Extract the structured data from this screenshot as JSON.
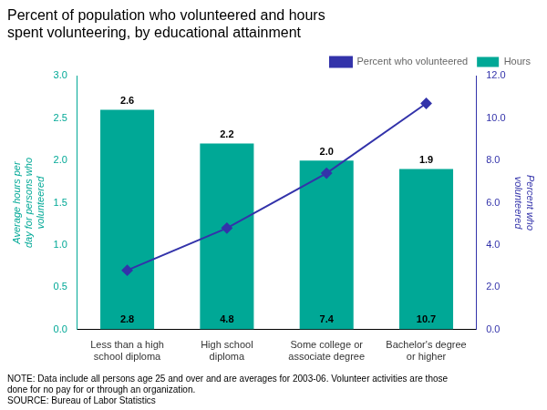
{
  "chart_data": {
    "type": "bar",
    "title": "Percent of population who volunteered and hours\nspent volunteering, by educational attainment",
    "categories": [
      "Less than a high\nschool diploma",
      "High school\ndiploma",
      "Some college or\nassociate degree",
      "Bachelor's degree\nor higher"
    ],
    "series": [
      {
        "name": "Hours",
        "color": "#00A896",
        "values": [
          2.6,
          2.2,
          2.0,
          1.9
        ],
        "value_labels": [
          "2.6",
          "2.2",
          "2.0",
          "1.9"
        ]
      },
      {
        "name": "Percent who volunteered",
        "type": "line",
        "axis": "y2",
        "color": "#3333AA",
        "marker": "diamond",
        "values": [
          2.8,
          4.8,
          7.4,
          10.7
        ]
      }
    ],
    "ylabel": "Average hours per\nday for persons who\nvolunteered",
    "y2label": "Percent who\nvolunteered",
    "ylim": [
      0,
      3.0
    ],
    "yticks": [
      {
        "value": 0,
        "label": "0.0"
      },
      0.5,
      {
        "value": 1,
        "label": "1.0"
      },
      1.5,
      {
        "value": 2,
        "label": "2.0"
      },
      2.5,
      {
        "value": 3,
        "label": "3.0"
      }
    ],
    "y2lim": [
      0,
      12.0
    ],
    "y2ticks": [
      {
        "value": 0,
        "label": "0.0"
      },
      {
        "value": 2,
        "label": "2.0"
      },
      {
        "value": 4,
        "label": "4.0"
      },
      {
        "value": 6,
        "label": "6.0"
      },
      {
        "value": 8,
        "label": "8.0"
      },
      {
        "value": 10,
        "label": "10.0"
      },
      {
        "value": 12,
        "label": "12.0"
      }
    ],
    "grid": false,
    "legend": "upper right",
    "data_labels": true,
    "annotations": [
      "NOTE: Data include all persons age 25 and over and are averages for 2003-06. Volunteer activities are those\ndone for no pay for or through an organization.",
      "SOURCE: Bureau of Labor Statistics"
    ]
  }
}
